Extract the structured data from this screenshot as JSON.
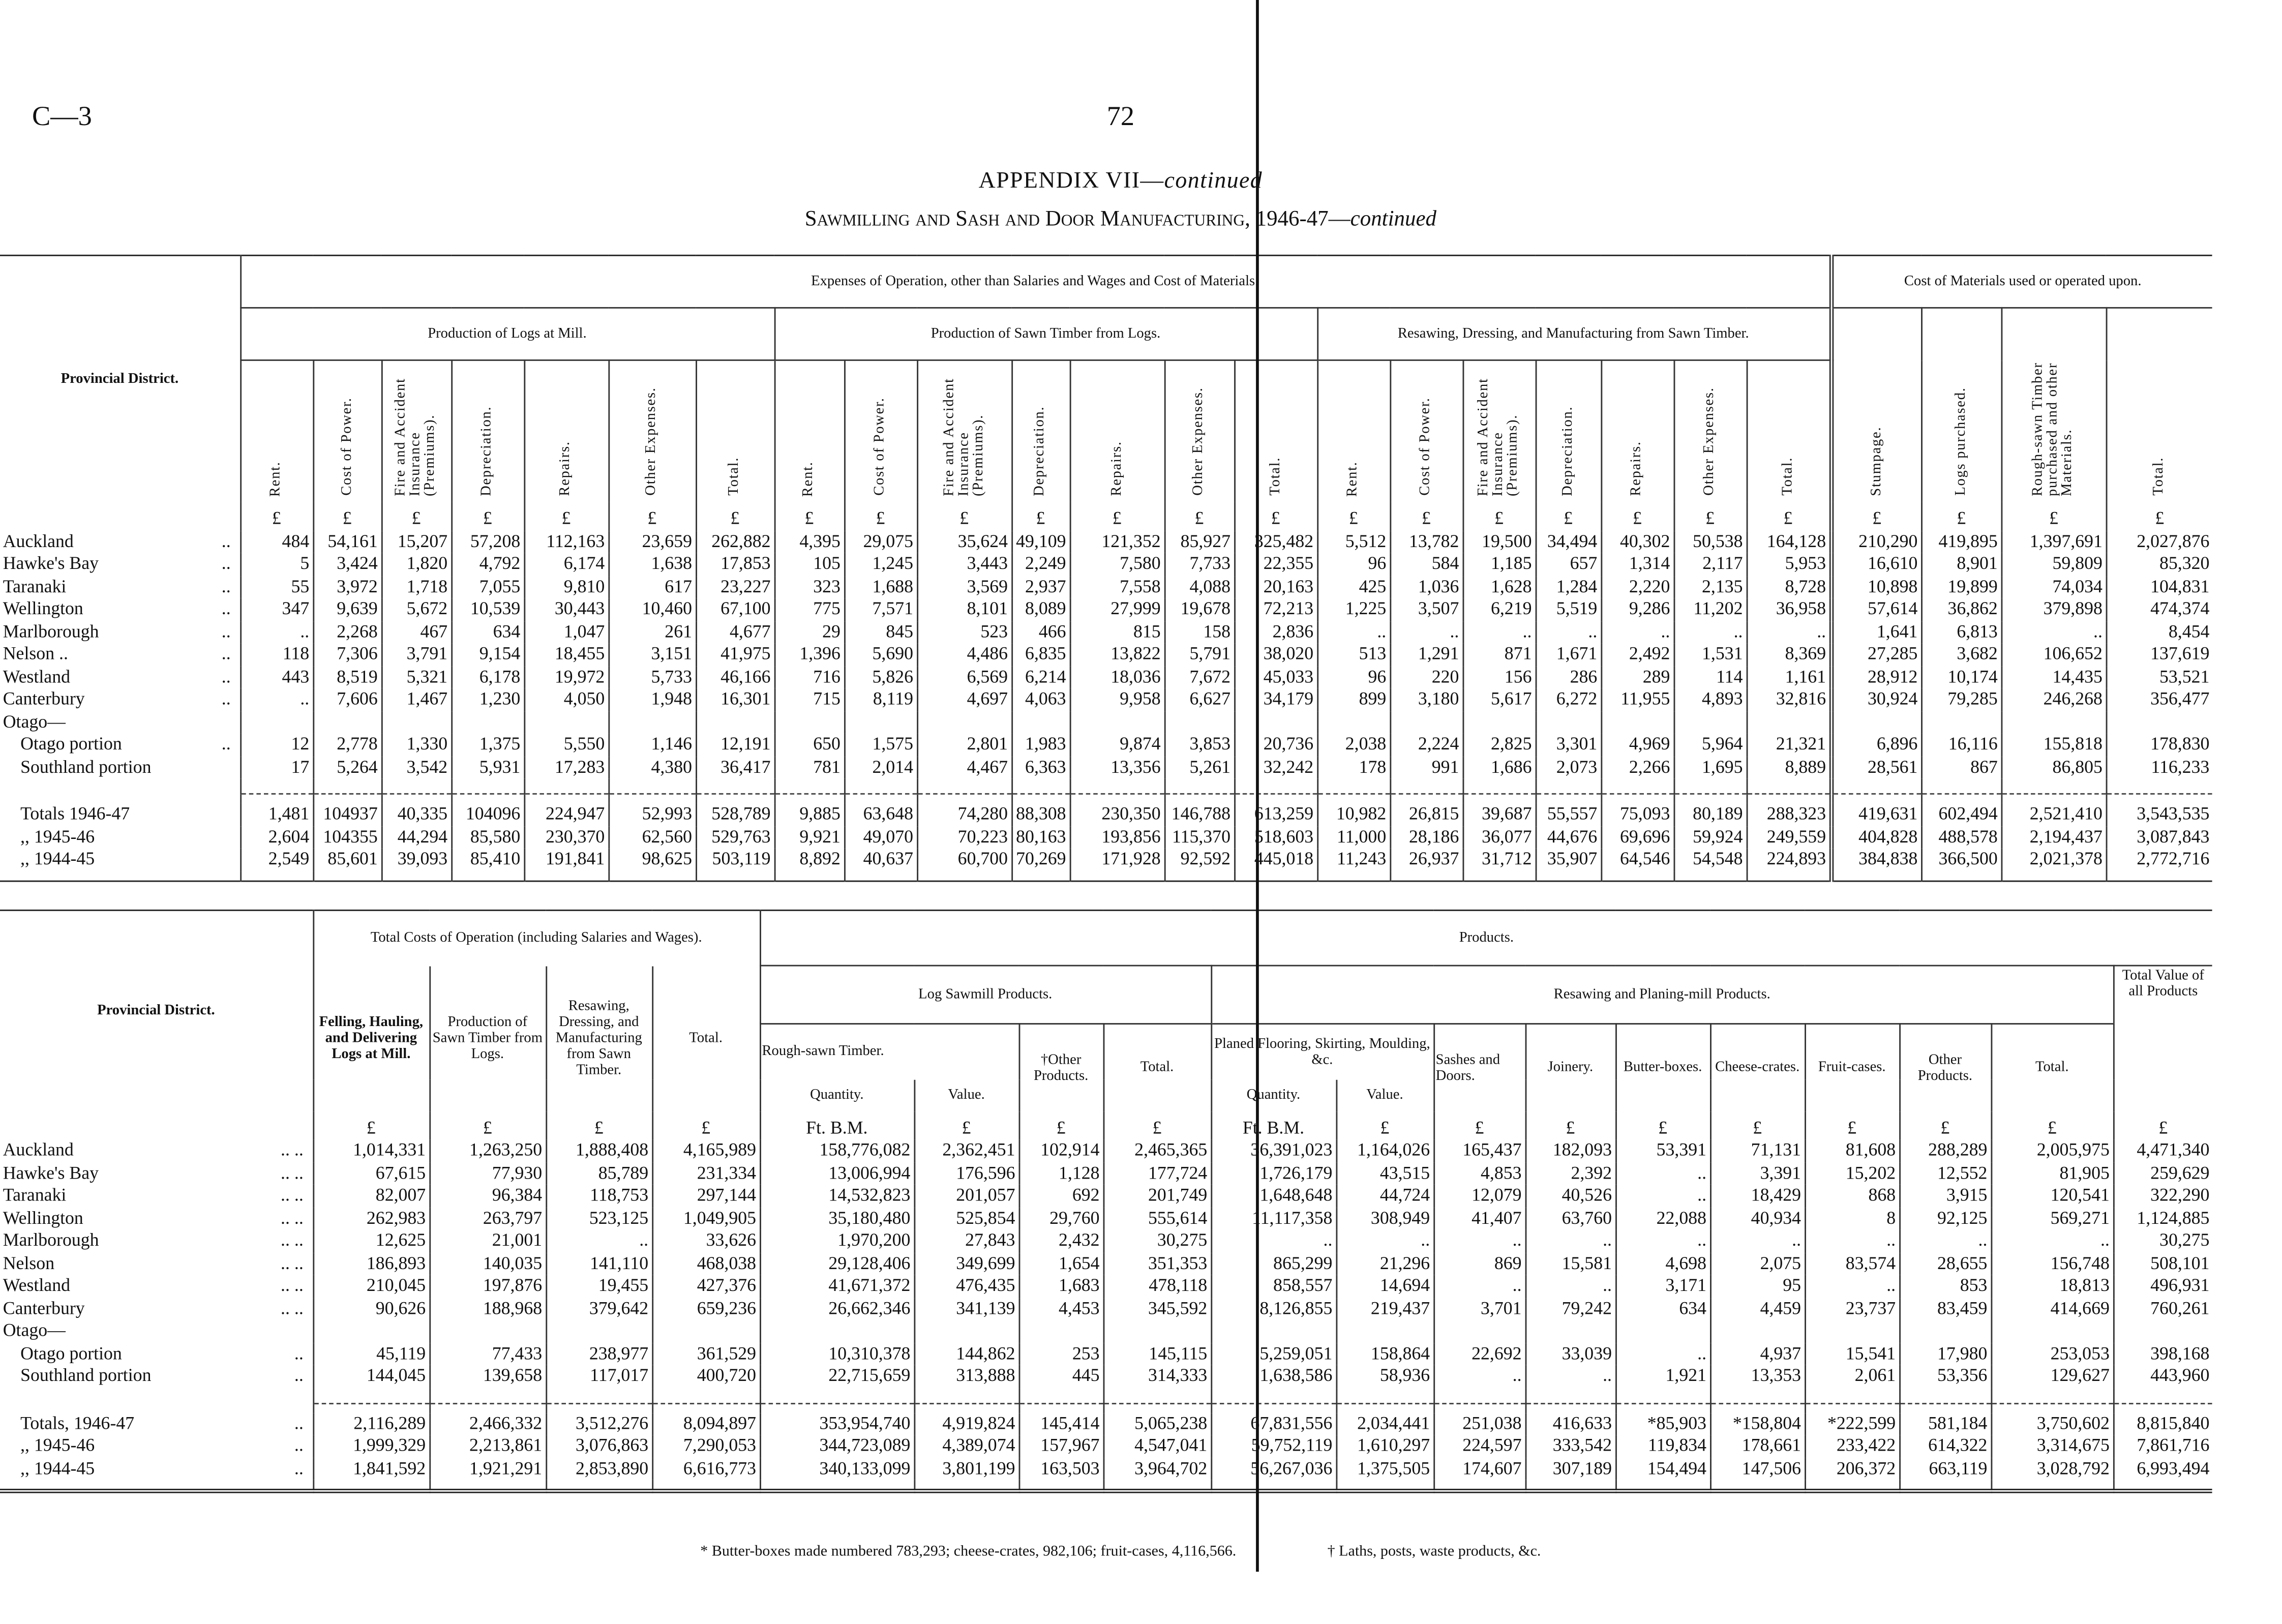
{
  "page": {
    "code": "C—3",
    "number": "72"
  },
  "title": {
    "main": "APPENDIX VII—",
    "main_italic": "continued",
    "sub": "Sawmilling and Sash and Door Manufacturing, 1946-47—",
    "sub_italic": "continued"
  },
  "top_table": {
    "district_header": "Provincial District.",
    "group_expenses": "Expenses of Operation, other than Salaries and Wages and Cost of Materials.",
    "group_materials": "Cost of Materials used or operated upon.",
    "sub_logs": "Production of Logs at Mill.",
    "sub_sawn": "Production of Sawn Timber from Logs.",
    "sub_resaw": "Resawing, Dressing, and Manufacturing from Sawn Timber.",
    "expense_columns": [
      "Rent.",
      "Cost of Power.",
      "Fire and Accident Insurance (Premiums).",
      "Depreciation.",
      "Repairs.",
      "Other Expenses.",
      "Total."
    ],
    "material_columns": [
      "Stumpage.",
      "Logs purchased.",
      "Rough-sawn Timber purchased and other Materials.",
      "Total."
    ],
    "units": [
      "£",
      "£",
      "£",
      "£",
      "£",
      "£",
      "£",
      "£",
      "£",
      "£",
      "£",
      "£",
      "£",
      "£",
      "£",
      "£",
      "£",
      "£",
      "£",
      "£",
      "£",
      "£",
      "£",
      "£",
      "£"
    ],
    "rows": [
      {
        "name": "Auckland",
        "lead": "..",
        "values": [
          "484",
          "54,161",
          "15,207",
          "57,208",
          "112,163",
          "23,659",
          "262,882",
          "4,395",
          "29,075",
          "35,624",
          "49,109",
          "121,352",
          "85,927",
          "325,482",
          "5,512",
          "13,782",
          "19,500",
          "34,494",
          "40,302",
          "50,538",
          "164,128",
          "210,290",
          "419,895",
          "1,397,691",
          "2,027,876"
        ]
      },
      {
        "name": "Hawke's Bay",
        "lead": "..",
        "values": [
          "5",
          "3,424",
          "1,820",
          "4,792",
          "6,174",
          "1,638",
          "17,853",
          "105",
          "1,245",
          "3,443",
          "2,249",
          "7,580",
          "7,733",
          "22,355",
          "96",
          "584",
          "1,185",
          "657",
          "1,314",
          "2,117",
          "5,953",
          "16,610",
          "8,901",
          "59,809",
          "85,320"
        ]
      },
      {
        "name": "Taranaki",
        "lead": "..",
        "values": [
          "55",
          "3,972",
          "1,718",
          "7,055",
          "9,810",
          "617",
          "23,227",
          "323",
          "1,688",
          "3,569",
          "2,937",
          "7,558",
          "4,088",
          "20,163",
          "425",
          "1,036",
          "1,628",
          "1,284",
          "2,220",
          "2,135",
          "8,728",
          "10,898",
          "19,899",
          "74,034",
          "104,831"
        ]
      },
      {
        "name": "Wellington",
        "lead": "..",
        "values": [
          "347",
          "9,639",
          "5,672",
          "10,539",
          "30,443",
          "10,460",
          "67,100",
          "775",
          "7,571",
          "8,101",
          "8,089",
          "27,999",
          "19,678",
          "72,213",
          "1,225",
          "3,507",
          "6,219",
          "5,519",
          "9,286",
          "11,202",
          "36,958",
          "57,614",
          "36,862",
          "379,898",
          "474,374"
        ]
      },
      {
        "name": "Marlborough",
        "lead": "..",
        "values": [
          "..",
          "2,268",
          "467",
          "634",
          "1,047",
          "261",
          "4,677",
          "29",
          "845",
          "523",
          "466",
          "815",
          "158",
          "2,836",
          "..",
          "..",
          "..",
          "..",
          "..",
          "..",
          "..",
          "1,641",
          "6,813",
          "..",
          "8,454"
        ]
      },
      {
        "name": "Nelson ..",
        "lead": "..",
        "values": [
          "118",
          "7,306",
          "3,791",
          "9,154",
          "18,455",
          "3,151",
          "41,975",
          "1,396",
          "5,690",
          "4,486",
          "6,835",
          "13,822",
          "5,791",
          "38,020",
          "513",
          "1,291",
          "871",
          "1,671",
          "2,492",
          "1,531",
          "8,369",
          "27,285",
          "3,682",
          "106,652",
          "137,619"
        ]
      },
      {
        "name": "Westland",
        "lead": "..",
        "values": [
          "443",
          "8,519",
          "5,321",
          "6,178",
          "19,972",
          "5,733",
          "46,166",
          "716",
          "5,826",
          "6,569",
          "6,214",
          "18,036",
          "7,672",
          "45,033",
          "96",
          "220",
          "156",
          "286",
          "289",
          "114",
          "1,161",
          "28,912",
          "10,174",
          "14,435",
          "53,521"
        ]
      },
      {
        "name": "Canterbury",
        "lead": "..",
        "values": [
          "..",
          "7,606",
          "1,467",
          "1,230",
          "4,050",
          "1,948",
          "16,301",
          "715",
          "8,119",
          "4,697",
          "4,063",
          "9,958",
          "6,627",
          "34,179",
          "899",
          "3,180",
          "5,617",
          "6,272",
          "11,955",
          "4,893",
          "32,816",
          "30,924",
          "79,285",
          "246,268",
          "356,477"
        ]
      },
      {
        "name": "Otago—",
        "lead": "",
        "values": []
      },
      {
        "name": "Otago portion",
        "lead": "..",
        "values": [
          "12",
          "2,778",
          "1,330",
          "1,375",
          "5,550",
          "1,146",
          "12,191",
          "650",
          "1,575",
          "2,801",
          "1,983",
          "9,874",
          "3,853",
          "20,736",
          "2,038",
          "2,224",
          "2,825",
          "3,301",
          "4,969",
          "5,964",
          "21,321",
          "6,896",
          "16,116",
          "155,818",
          "178,830"
        ]
      },
      {
        "name": "Southland portion",
        "lead": "",
        "values": [
          "17",
          "5,264",
          "3,542",
          "5,931",
          "17,283",
          "4,380",
          "36,417",
          "781",
          "2,014",
          "4,467",
          "6,363",
          "13,356",
          "5,261",
          "32,242",
          "178",
          "991",
          "1,686",
          "2,073",
          "2,266",
          "1,695",
          "8,889",
          "28,561",
          "867",
          "86,805",
          "116,233"
        ]
      }
    ],
    "totals": [
      {
        "name": "Totals 1946-47",
        "lead": "",
        "values": [
          "1,481",
          "104937",
          "40,335",
          "104096",
          "224,947",
          "52,993",
          "528,789",
          "9,885",
          "63,648",
          "74,280",
          "88,308",
          "230,350",
          "146,788",
          "613,259",
          "10,982",
          "26,815",
          "39,687",
          "55,557",
          "75,093",
          "80,189",
          "288,323",
          "419,631",
          "602,494",
          "2,521,410",
          "3,543,535"
        ]
      },
      {
        "name": ",,      1945-46",
        "lead": "",
        "values": [
          "2,604",
          "104355",
          "44,294",
          "85,580",
          "230,370",
          "62,560",
          "529,763",
          "9,921",
          "49,070",
          "70,223",
          "80,163",
          "193,856",
          "115,370",
          "518,603",
          "11,000",
          "28,186",
          "36,077",
          "44,676",
          "69,696",
          "59,924",
          "249,559",
          "404,828",
          "488,578",
          "2,194,437",
          "3,087,843"
        ]
      },
      {
        "name": ",,      1944-45",
        "lead": "",
        "values": [
          "2,549",
          "85,601",
          "39,093",
          "85,410",
          "191,841",
          "98,625",
          "503,119",
          "8,892",
          "40,637",
          "60,700",
          "70,269",
          "171,928",
          "92,592",
          "445,018",
          "11,243",
          "26,937",
          "31,712",
          "35,907",
          "64,546",
          "54,548",
          "224,893",
          "384,838",
          "366,500",
          "2,021,378",
          "2,772,716"
        ]
      }
    ]
  },
  "bottom_table": {
    "district_header": "Provincial District.",
    "group_costs": "Total Costs of Operation (including Salaries and Wages).",
    "group_products": "Products.",
    "cost_columns": [
      "Felling, Hauling, and Delivering Logs at Mill.",
      "Production of Sawn Timber from Logs.",
      "Resawing, Dressing, and Manufacturing from Sawn Timber.",
      "Total."
    ],
    "sub_log_sawmill": "Log Sawmill Products.",
    "sub_resaw_planing": "Resawing and Planing-mill Products.",
    "rough_sawn": "Rough-sawn Timber.",
    "other_products_dagger": "†Other Products.",
    "total": "Total.",
    "planed": "Planed Flooring, Skirting, Moulding, &c.",
    "quantity": "Quantity.",
    "value": "Value.",
    "planing_columns": [
      "Sashes and Doors.",
      "Joinery.",
      "Butter-boxes.",
      "Cheese-crates.",
      "Fruit-cases.",
      "Other Products.",
      "Total."
    ],
    "total_value": "Total Value of all Products",
    "units": [
      "£",
      "£",
      "£",
      "£",
      "Ft. B.M.",
      "£",
      "£",
      "£",
      "Ft. B.M.",
      "£",
      "£",
      "£",
      "£",
      "£",
      "£",
      "£",
      "£",
      "£"
    ],
    "rows": [
      {
        "name": "Auckland",
        "lead": "..   ..",
        "values": [
          "1,014,331",
          "1,263,250",
          "1,888,408",
          "4,165,989",
          "158,776,082",
          "2,362,451",
          "102,914",
          "2,465,365",
          "36,391,023",
          "1,164,026",
          "165,437",
          "182,093",
          "53,391",
          "71,131",
          "81,608",
          "288,289",
          "2,005,975",
          "4,471,340"
        ]
      },
      {
        "name": "Hawke's Bay",
        "lead": "..   ..",
        "values": [
          "67,615",
          "77,930",
          "85,789",
          "231,334",
          "13,006,994",
          "176,596",
          "1,128",
          "177,724",
          "1,726,179",
          "43,515",
          "4,853",
          "2,392",
          "..",
          "3,391",
          "15,202",
          "12,552",
          "81,905",
          "259,629"
        ]
      },
      {
        "name": "Taranaki",
        "lead": "..   ..",
        "values": [
          "82,007",
          "96,384",
          "118,753",
          "297,144",
          "14,532,823",
          "201,057",
          "692",
          "201,749",
          "1,648,648",
          "44,724",
          "12,079",
          "40,526",
          "..",
          "18,429",
          "868",
          "3,915",
          "120,541",
          "322,290"
        ]
      },
      {
        "name": "Wellington",
        "lead": "..   ..",
        "values": [
          "262,983",
          "263,797",
          "523,125",
          "1,049,905",
          "35,180,480",
          "525,854",
          "29,760",
          "555,614",
          "11,117,358",
          "308,949",
          "41,407",
          "63,760",
          "22,088",
          "40,934",
          "8",
          "92,125",
          "569,271",
          "1,124,885"
        ]
      },
      {
        "name": "Marlborough",
        "lead": "..   ..",
        "values": [
          "12,625",
          "21,001",
          "..",
          "33,626",
          "1,970,200",
          "27,843",
          "2,432",
          "30,275",
          "..",
          "..",
          "..",
          "..",
          "..",
          "..",
          "..",
          "..",
          "..",
          "30,275"
        ]
      },
      {
        "name": "Nelson",
        "lead": "..   ..",
        "values": [
          "186,893",
          "140,035",
          "141,110",
          "468,038",
          "29,128,406",
          "349,699",
          "1,654",
          "351,353",
          "865,299",
          "21,296",
          "869",
          "15,581",
          "4,698",
          "2,075",
          "83,574",
          "28,655",
          "156,748",
          "508,101"
        ]
      },
      {
        "name": "Westland",
        "lead": "..   ..",
        "values": [
          "210,045",
          "197,876",
          "19,455",
          "427,376",
          "41,671,372",
          "476,435",
          "1,683",
          "478,118",
          "858,557",
          "14,694",
          "..",
          "..",
          "3,171",
          "95",
          "..",
          "853",
          "18,813",
          "496,931"
        ]
      },
      {
        "name": "Canterbury",
        "lead": "..   ..",
        "values": [
          "90,626",
          "188,968",
          "379,642",
          "659,236",
          "26,662,346",
          "341,139",
          "4,453",
          "345,592",
          "8,126,855",
          "219,437",
          "3,701",
          "79,242",
          "634",
          "4,459",
          "23,737",
          "83,459",
          "414,669",
          "760,261"
        ]
      },
      {
        "name": "Otago—",
        "lead": "",
        "values": []
      },
      {
        "name": "Otago portion",
        "lead": "..",
        "values": [
          "45,119",
          "77,433",
          "238,977",
          "361,529",
          "10,310,378",
          "144,862",
          "253",
          "145,115",
          "5,259,051",
          "158,864",
          "22,692",
          "33,039",
          "..",
          "4,937",
          "15,541",
          "17,980",
          "253,053",
          "398,168"
        ]
      },
      {
        "name": "Southland portion",
        "lead": "..",
        "values": [
          "144,045",
          "139,658",
          "117,017",
          "400,720",
          "22,715,659",
          "313,888",
          "445",
          "314,333",
          "1,638,586",
          "58,936",
          "..",
          "..",
          "1,921",
          "13,353",
          "2,061",
          "53,356",
          "129,627",
          "443,960"
        ]
      }
    ],
    "totals": [
      {
        "name": "Totals, 1946-47",
        "lead": "..",
        "values": [
          "2,116,289",
          "2,466,332",
          "3,512,276",
          "8,094,897",
          "353,954,740",
          "4,919,824",
          "145,414",
          "5,065,238",
          "67,831,556",
          "2,034,441",
          "251,038",
          "416,633",
          "*85,903",
          "*158,804",
          "*222,599",
          "581,184",
          "3,750,602",
          "8,815,840"
        ]
      },
      {
        "name": ",,      1945-46",
        "lead": "..",
        "values": [
          "1,999,329",
          "2,213,861",
          "3,076,863",
          "7,290,053",
          "344,723,089",
          "4,389,074",
          "157,967",
          "4,547,041",
          "59,752,119",
          "1,610,297",
          "224,597",
          "333,542",
          "119,834",
          "178,661",
          "233,422",
          "614,322",
          "3,314,675",
          "7,861,716"
        ]
      },
      {
        "name": ",,      1944-45",
        "lead": "..",
        "values": [
          "1,841,592",
          "1,921,291",
          "2,853,890",
          "6,616,773",
          "340,133,099",
          "3,801,199",
          "163,503",
          "3,964,702",
          "56,267,036",
          "1,375,505",
          "174,607",
          "307,189",
          "154,494",
          "147,506",
          "206,372",
          "663,119",
          "3,028,792",
          "6,993,494"
        ]
      }
    ]
  },
  "footnotes": {
    "star": "* Butter-boxes made numbered 783,293; cheese-crates, 982,106; fruit-cases, 4,116,566.",
    "dagger": "† Laths, posts, waste products, &c."
  }
}
